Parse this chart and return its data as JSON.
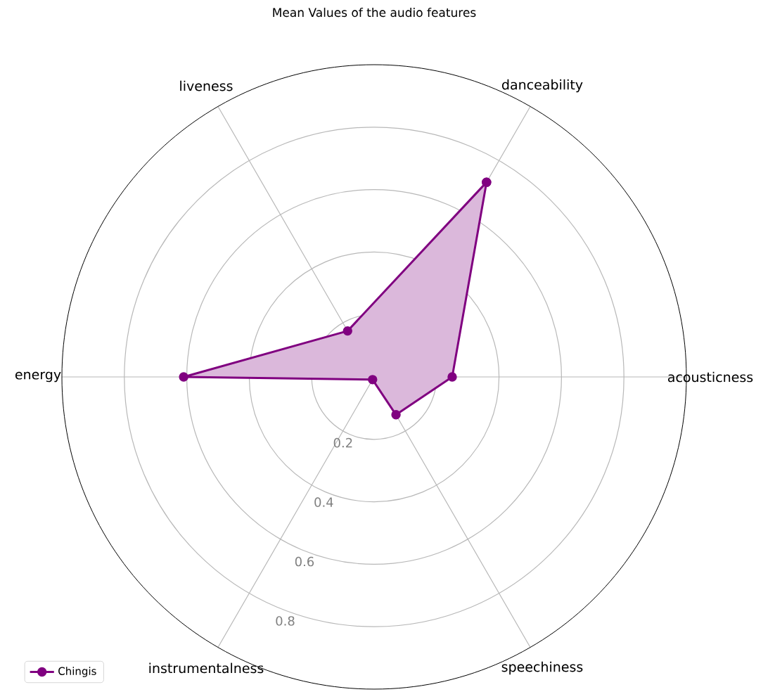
{
  "chart_data": {
    "type": "radar",
    "title": "Mean Values of the audio features",
    "categories": [
      "danceability",
      "acousticness",
      "speechiness",
      "instrumentalness",
      "energy",
      "liveness"
    ],
    "series": [
      {
        "name": "Chingis",
        "color": "#800080",
        "values": [
          0.72,
          0.25,
          0.14,
          0.01,
          0.61,
          0.17
        ]
      }
    ],
    "ylim": [
      0,
      1
    ],
    "yticks": [
      0.2,
      0.4,
      0.6,
      0.8
    ],
    "grid": true,
    "legend": "bottom left",
    "marker": "circle"
  }
}
